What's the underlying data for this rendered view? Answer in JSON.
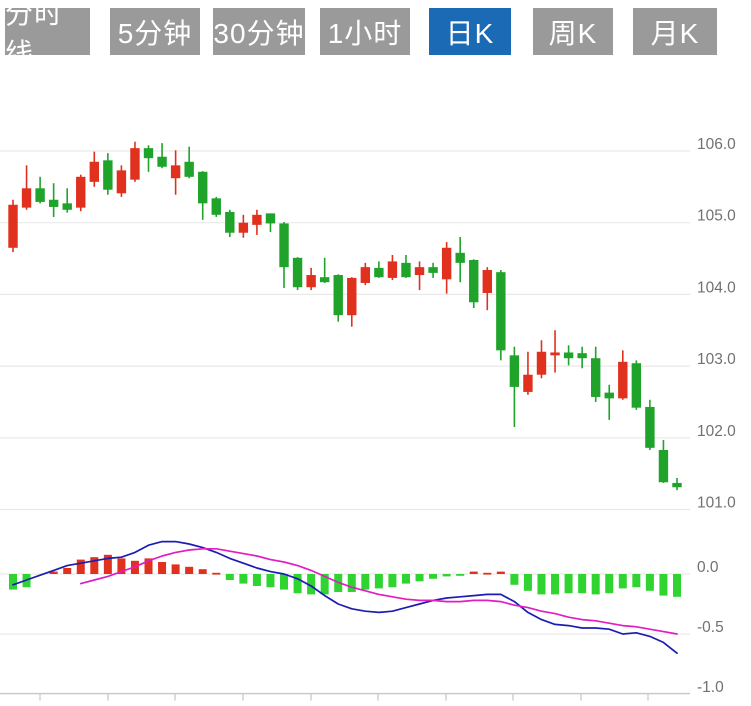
{
  "toolbar": {
    "buttons": [
      {
        "label": "分时线",
        "active": false
      },
      {
        "label": "5分钟",
        "active": false
      },
      {
        "label": "30分钟",
        "active": false
      },
      {
        "label": "1小时",
        "active": false
      },
      {
        "label": "日K",
        "active": true
      },
      {
        "label": "周K",
        "active": false
      },
      {
        "label": "月K",
        "active": false
      }
    ]
  },
  "chart_data": {
    "type": "candlestick",
    "title": "",
    "panels": [
      "price-kline",
      "macd-indicator"
    ],
    "legend_position": "none",
    "grid": true,
    "price_axis": {
      "side": "right",
      "labels": [
        "106.0",
        "105.0",
        "104.0",
        "103.0",
        "102.0",
        "101.0"
      ],
      "values": [
        106.0,
        105.0,
        104.0,
        103.0,
        102.0,
        101.0
      ],
      "range": [
        100.8,
        106.8
      ]
    },
    "macd_axis": {
      "side": "right",
      "labels": [
        "0.0",
        "-0.5",
        "-1.0"
      ],
      "values": [
        0.0,
        -0.5,
        -1.0
      ],
      "range": [
        -1.05,
        0.35
      ]
    },
    "candles_ohlc": [
      [
        104.65,
        105.32,
        104.59,
        105.25
      ],
      [
        105.21,
        105.8,
        105.18,
        105.48
      ],
      [
        105.48,
        105.64,
        105.27,
        105.29
      ],
      [
        105.32,
        105.55,
        105.08,
        105.22
      ],
      [
        105.27,
        105.48,
        105.14,
        105.18
      ],
      [
        105.21,
        105.67,
        105.16,
        105.64
      ],
      [
        105.57,
        105.99,
        105.5,
        105.85
      ],
      [
        105.87,
        105.97,
        105.39,
        105.46
      ],
      [
        105.41,
        105.8,
        105.36,
        105.73
      ],
      [
        105.6,
        106.13,
        105.57,
        106.04
      ],
      [
        106.04,
        106.08,
        105.71,
        105.9
      ],
      [
        105.92,
        106.11,
        105.76,
        105.78
      ],
      [
        105.62,
        106.01,
        105.39,
        105.8
      ],
      [
        105.85,
        106.06,
        105.62,
        105.64
      ],
      [
        105.71,
        105.72,
        105.04,
        105.27
      ],
      [
        105.34,
        105.36,
        105.08,
        105.11
      ],
      [
        105.15,
        105.18,
        104.8,
        104.86
      ],
      [
        104.86,
        105.11,
        104.79,
        105.0
      ],
      [
        104.97,
        105.18,
        104.83,
        105.11
      ],
      [
        105.13,
        105.13,
        104.87,
        104.99
      ],
      [
        104.99,
        105.01,
        104.09,
        104.38
      ],
      [
        104.51,
        104.52,
        104.06,
        104.1
      ],
      [
        104.1,
        104.37,
        104.06,
        104.27
      ],
      [
        104.24,
        104.51,
        104.16,
        104.17
      ],
      [
        104.27,
        104.28,
        103.62,
        103.71
      ],
      [
        103.71,
        104.24,
        103.55,
        104.23
      ],
      [
        104.16,
        104.44,
        104.13,
        104.38
      ],
      [
        104.37,
        104.46,
        104.23,
        104.24
      ],
      [
        104.23,
        104.55,
        104.2,
        104.46
      ],
      [
        104.44,
        104.55,
        104.23,
        104.24
      ],
      [
        104.27,
        104.46,
        104.06,
        104.38
      ],
      [
        104.38,
        104.44,
        104.23,
        104.3
      ],
      [
        104.21,
        104.73,
        104.01,
        104.65
      ],
      [
        104.58,
        104.8,
        104.17,
        104.44
      ],
      [
        104.48,
        104.49,
        103.81,
        103.89
      ],
      [
        104.02,
        104.38,
        103.78,
        104.34
      ],
      [
        104.31,
        104.34,
        103.08,
        103.22
      ],
      [
        103.15,
        103.27,
        102.15,
        102.71
      ],
      [
        102.64,
        103.2,
        102.6,
        102.88
      ],
      [
        102.88,
        103.36,
        102.83,
        103.2
      ],
      [
        103.15,
        103.5,
        102.91,
        103.19
      ],
      [
        103.19,
        103.29,
        103.01,
        103.11
      ],
      [
        103.18,
        103.27,
        102.97,
        103.11
      ],
      [
        103.11,
        103.27,
        102.5,
        102.57
      ],
      [
        102.63,
        102.74,
        102.25,
        102.55
      ],
      [
        102.55,
        103.22,
        102.53,
        103.06
      ],
      [
        103.04,
        103.08,
        102.39,
        102.42
      ],
      [
        102.43,
        102.53,
        101.83,
        101.86
      ],
      [
        101.83,
        101.97,
        101.37,
        101.38
      ],
      [
        101.37,
        101.44,
        101.27,
        101.31
      ]
    ],
    "macd": {
      "histogram": [
        -0.13,
        -0.11,
        0.0,
        0.02,
        0.05,
        0.12,
        0.14,
        0.16,
        0.13,
        0.11,
        0.13,
        0.1,
        0.08,
        0.06,
        0.04,
        0.01,
        -0.05,
        -0.08,
        -0.1,
        -0.11,
        -0.13,
        -0.16,
        -0.17,
        -0.17,
        -0.15,
        -0.15,
        -0.13,
        -0.12,
        -0.11,
        -0.08,
        -0.06,
        -0.04,
        -0.02,
        -0.01,
        0.02,
        0.01,
        0.02,
        -0.09,
        -0.14,
        -0.17,
        -0.17,
        -0.16,
        -0.16,
        -0.17,
        -0.16,
        -0.12,
        -0.11,
        -0.14,
        -0.18,
        -0.19
      ],
      "dif": [
        -0.09,
        -0.05,
        -0.01,
        0.03,
        0.07,
        0.09,
        0.11,
        0.13,
        0.14,
        0.18,
        0.24,
        0.27,
        0.27,
        0.25,
        0.22,
        0.18,
        0.13,
        0.09,
        0.05,
        0.02,
        0.0,
        -0.04,
        -0.1,
        -0.18,
        -0.25,
        -0.29,
        -0.31,
        -0.32,
        -0.31,
        -0.28,
        -0.25,
        -0.22,
        -0.2,
        -0.19,
        -0.18,
        -0.17,
        -0.17,
        -0.23,
        -0.32,
        -0.38,
        -0.42,
        -0.43,
        -0.45,
        -0.45,
        -0.46,
        -0.5,
        -0.49,
        -0.52,
        -0.57,
        -0.66
      ],
      "dea": [
        null,
        null,
        null,
        null,
        null,
        -0.08,
        -0.05,
        -0.02,
        0.02,
        0.06,
        0.11,
        0.15,
        0.18,
        0.2,
        0.21,
        0.21,
        0.19,
        0.17,
        0.15,
        0.12,
        0.1,
        0.07,
        0.03,
        -0.02,
        -0.07,
        -0.11,
        -0.14,
        -0.17,
        -0.19,
        -0.21,
        -0.22,
        -0.22,
        -0.23,
        -0.23,
        -0.22,
        -0.22,
        -0.23,
        -0.26,
        -0.28,
        -0.31,
        -0.33,
        -0.36,
        -0.38,
        -0.39,
        -0.41,
        -0.43,
        -0.44,
        -0.46,
        -0.48,
        -0.5
      ]
    },
    "colors": {
      "up": "#e0301e",
      "down": "#1fa32b",
      "hist_up": "#e0301e",
      "hist_down": "#2fd431",
      "dif_line": "#1c1cb4",
      "dea_line": "#e11dc4",
      "active_tab": "#1a6ab5",
      "tab_bg": "#9a9a9a",
      "grid": "#e9e9e9",
      "axis": "#c8c8c8",
      "label": "#717171"
    }
  }
}
